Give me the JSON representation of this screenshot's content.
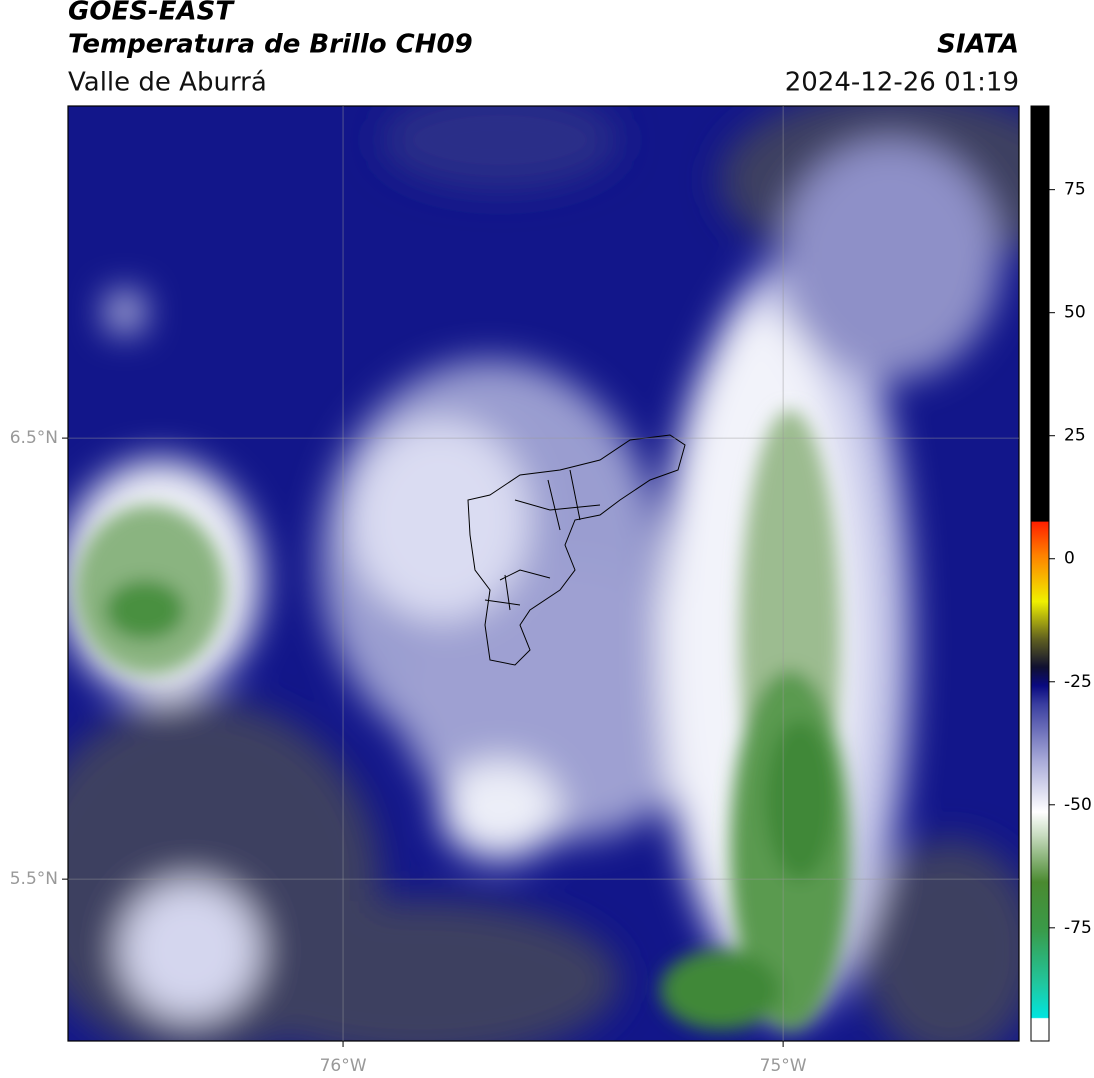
{
  "header": {
    "title": "GOES-EAST",
    "subtitle": "Temperatura de Brillo CH09",
    "region": "Valle de Aburrá",
    "source": "SIATA",
    "datetime": "2024-12-26 01:19"
  },
  "map": {
    "lat_range": [
      5.133,
      7.253
    ],
    "lon_range": [
      -76.625,
      -74.464
    ],
    "lat_ticks": [
      {
        "value": 6.5,
        "label": "6.5°N"
      },
      {
        "value": 5.5,
        "label": "5.5°N"
      }
    ],
    "lon_ticks": [
      {
        "value": -76,
        "label": "76°W"
      },
      {
        "value": -75,
        "label": "75°W"
      }
    ]
  },
  "colorbar": {
    "range": [
      -98,
      92
    ],
    "ticks": [
      75,
      50,
      25,
      0,
      -25,
      -50,
      -75
    ]
  }
}
